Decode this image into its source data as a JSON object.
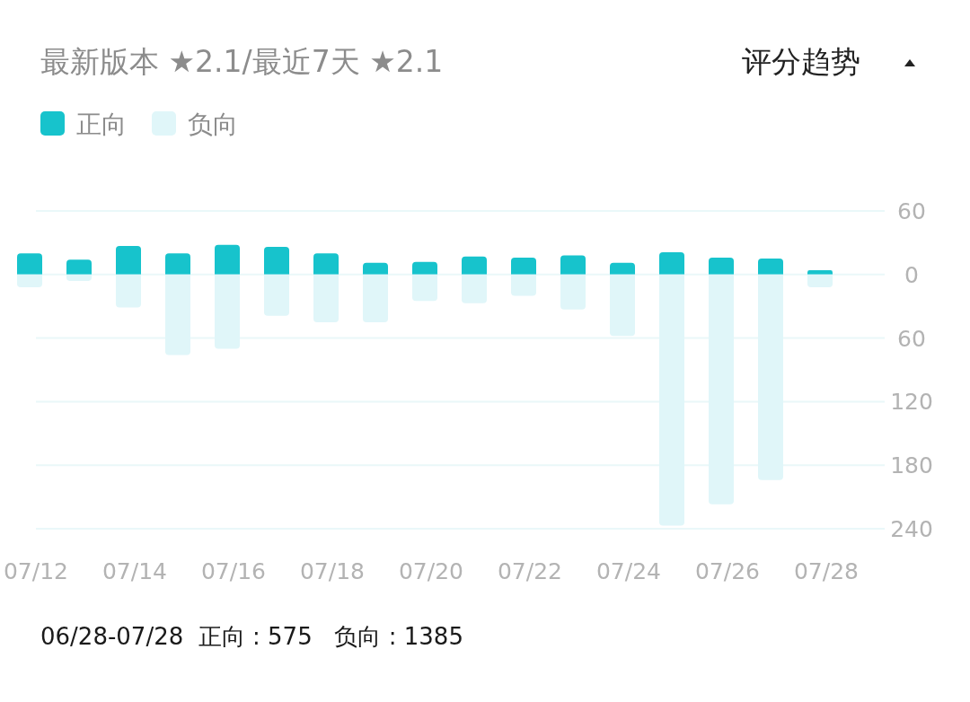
{
  "chart_data": {
    "type": "bar",
    "title": "最新版本 ★2.1/最近7天 ★2.1",
    "categories": [
      "07/12",
      null,
      "07/14",
      null,
      "07/16",
      null,
      "07/18",
      null,
      "07/20",
      null,
      "07/22",
      null,
      "07/24",
      null,
      "07/26",
      null,
      "07/28"
    ],
    "series": [
      {
        "name": "正向",
        "color": "#17c3cc",
        "values": [
          20,
          14,
          27,
          20,
          28,
          26,
          20,
          11,
          12,
          17,
          16,
          18,
          11,
          21,
          16,
          15,
          4
        ]
      },
      {
        "name": "负向",
        "color": "#e0f6f9",
        "values": [
          -12,
          -6,
          -31,
          -76,
          -70,
          -39,
          -45,
          -45,
          -25,
          -27,
          -20,
          -33,
          -58,
          -237,
          -217,
          -194,
          -12
        ]
      }
    ],
    "ylim": [
      -240,
      60
    ],
    "yticks": [
      {
        "value": 60,
        "label": "60"
      },
      0,
      {
        "value": -60,
        "label": "60"
      },
      {
        "value": -120,
        "label": "120"
      },
      {
        "value": -180,
        "label": "180"
      },
      {
        "value": -240,
        "label": "240"
      }
    ],
    "stacked": true,
    "grid": "y",
    "legend": "top left",
    "annotations": [
      "评分趋势",
      "06/28-07/28  正向 : 575   负向 : 1385"
    ]
  }
}
